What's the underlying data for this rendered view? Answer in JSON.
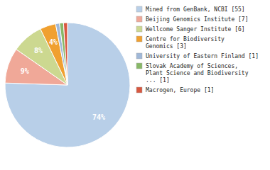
{
  "chart_data": {
    "type": "pie",
    "categories": [
      "Mined from GenBank, NCBI [55]",
      "Beijing Genomics Institute [7]",
      "Wellcome Sanger Institute [6]",
      "Centre for Biodiversity\nGenomics [3]",
      "University of Eastern Finland [1]",
      "Slovak Academy of Sciences,\nPlant Science and Biodiversity\n... [1]",
      "Macrogen, Europe [1]"
    ],
    "values": [
      74,
      9,
      8,
      4,
      1,
      1,
      1
    ],
    "value_labels": [
      "74%",
      "9%",
      "8%",
      "4%",
      null,
      null,
      null
    ],
    "data_labels": true,
    "colors": [
      "#b8cfe8",
      "#f0a898",
      "#ccd890",
      "#f0a030",
      "#a0b8d8",
      "#88b868",
      "#d85840"
    ],
    "legend": "right"
  }
}
